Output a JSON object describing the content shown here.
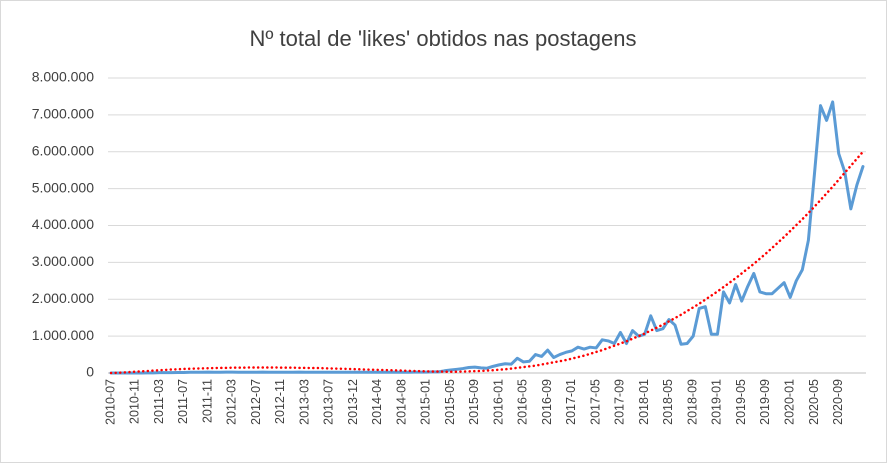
{
  "chart_data": {
    "type": "line",
    "title": "Nº total de 'likes' obtidos nas postagens",
    "categories": [
      "2010-07",
      null,
      null,
      null,
      "2010-11",
      null,
      null,
      null,
      "2011-03",
      null,
      null,
      null,
      "2011-07",
      null,
      null,
      null,
      "2011-11",
      null,
      null,
      null,
      "2012-03",
      null,
      null,
      null,
      "2012-07",
      null,
      null,
      null,
      "2012-11",
      null,
      null,
      null,
      "2013-03",
      null,
      null,
      null,
      "2013-07",
      null,
      null,
      null,
      "2013-12",
      null,
      null,
      null,
      "2014-04",
      null,
      null,
      null,
      "2014-08",
      null,
      null,
      null,
      "2015-01",
      null,
      null,
      null,
      "2015-05",
      null,
      null,
      null,
      "2015-09",
      null,
      null,
      null,
      "2016-01",
      null,
      null,
      null,
      "2016-05",
      null,
      null,
      null,
      "2016-09",
      null,
      null,
      null,
      "2017-01",
      null,
      null,
      null,
      "2017-05",
      null,
      null,
      null,
      "2017-09",
      null,
      null,
      null,
      "2018-01",
      null,
      null,
      null,
      "2018-05",
      null,
      null,
      null,
      "2018-09",
      null,
      null,
      null,
      "2019-01",
      null,
      null,
      null,
      "2019-05",
      null,
      null,
      null,
      "2019-09",
      null,
      null,
      null,
      "2020-01",
      null,
      null,
      null,
      "2020-05",
      null,
      null,
      null,
      "2020-09",
      null,
      null,
      null,
      null
    ],
    "series": [
      {
        "color": "#5b9bd5",
        "values": [
          0,
          0,
          0,
          0,
          0,
          0,
          5000,
          5000,
          10000,
          10000,
          10000,
          15000,
          15000,
          20000,
          20000,
          20000,
          25000,
          20000,
          20000,
          25000,
          25000,
          20000,
          20000,
          20000,
          20000,
          25000,
          20000,
          20000,
          20000,
          20000,
          20000,
          25000,
          20000,
          20000,
          20000,
          20000,
          20000,
          20000,
          20000,
          20000,
          20000,
          20000,
          20000,
          20000,
          20000,
          20000,
          20000,
          20000,
          20000,
          20000,
          25000,
          25000,
          25000,
          30000,
          30000,
          60000,
          80000,
          100000,
          120000,
          150000,
          160000,
          140000,
          130000,
          180000,
          220000,
          250000,
          240000,
          400000,
          300000,
          320000,
          500000,
          450000,
          620000,
          420000,
          500000,
          560000,
          600000,
          700000,
          650000,
          700000,
          680000,
          900000,
          870000,
          800000,
          1100000,
          800000,
          1150000,
          1000000,
          1050000,
          1550000,
          1150000,
          1200000,
          1450000,
          1300000,
          780000,
          800000,
          1000000,
          1750000,
          1800000,
          1050000,
          1050000,
          2200000,
          1900000,
          2400000,
          1950000,
          2350000,
          2700000,
          2200000,
          2150000,
          2150000,
          2300000,
          2450000,
          2050000,
          2500000,
          2800000,
          3600000,
          5400000,
          7250000,
          6850000,
          7350000,
          5950000,
          5450000,
          4450000,
          5100000,
          5600000
        ]
      },
      {
        "color": "#ff0000",
        "dotted": true,
        "values": [
          0,
          5000,
          15000,
          25000,
          35000,
          45000,
          55000,
          65000,
          75000,
          85000,
          95000,
          100000,
          110000,
          115000,
          120000,
          125000,
          130000,
          135000,
          140000,
          140000,
          145000,
          145000,
          145000,
          150000,
          150000,
          150000,
          150000,
          150000,
          145000,
          145000,
          145000,
          140000,
          140000,
          135000,
          135000,
          130000,
          125000,
          120000,
          115000,
          110000,
          105000,
          100000,
          95000,
          90000,
          85000,
          80000,
          75000,
          70000,
          65000,
          60000,
          55000,
          50000,
          45000,
          40000,
          40000,
          35000,
          35000,
          35000,
          40000,
          45000,
          50000,
          55000,
          65000,
          75000,
          90000,
          100000,
          120000,
          140000,
          160000,
          180000,
          200000,
          230000,
          260000,
          290000,
          320000,
          350000,
          390000,
          430000,
          470000,
          520000,
          570000,
          620000,
          680000,
          740000,
          800000,
          860000,
          930000,
          1000000,
          1070000,
          1150000,
          1230000,
          1310000,
          1400000,
          1490000,
          1580000,
          1680000,
          1780000,
          1880000,
          1990000,
          2100000,
          2210000,
          2330000,
          2450000,
          2570000,
          2700000,
          2830000,
          2960000,
          3100000,
          3240000,
          3390000,
          3540000,
          3690000,
          3850000,
          4010000,
          4170000,
          4340000,
          4510000,
          4690000,
          4870000,
          5050000,
          5240000,
          5430000,
          5620000,
          5810000,
          6000000
        ]
      }
    ],
    "ylim": [
      0,
      8000000
    ],
    "yticks": [
      0,
      {
        "value": 1000000,
        "label": "1.000.000"
      },
      {
        "value": 2000000,
        "label": "2.000.000"
      },
      {
        "value": 3000000,
        "label": "3.000.000"
      },
      {
        "value": 4000000,
        "label": "4.000.000"
      },
      {
        "value": 5000000,
        "label": "5.000.000"
      },
      {
        "value": 6000000,
        "label": "6.000.000"
      },
      {
        "value": 7000000,
        "label": "7.000.000"
      },
      {
        "value": 8000000,
        "label": "8.000.000"
      }
    ],
    "grid": true
  }
}
